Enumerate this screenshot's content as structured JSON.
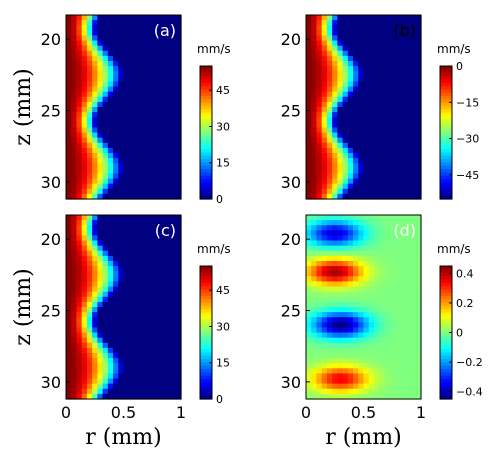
{
  "chart_data": [
    {
      "type": "heatmap",
      "panel_label": "(a)",
      "ylabel": "z (mm)",
      "xlabel": "",
      "x_ticks": [],
      "y_ticks": [
        "20",
        "25",
        "30"
      ],
      "xlim": [
        0,
        1
      ],
      "ylim": [
        18.3,
        31.2
      ],
      "colorbar": {
        "unit": "mm/s",
        "min": 0,
        "max": 55,
        "ticks": [
          "45",
          "30",
          "15",
          "0"
        ],
        "tick_values": [
          45,
          30,
          15,
          0
        ]
      },
      "field": {
        "kind": "velocity",
        "vmax": 55,
        "vmin": 0
      }
    },
    {
      "type": "heatmap",
      "panel_label": "(b)",
      "ylabel": "",
      "xlabel": "",
      "x_ticks": [],
      "y_ticks": [
        "20",
        "25",
        "30"
      ],
      "xlim": [
        0,
        1
      ],
      "ylim": [
        18.3,
        31.2
      ],
      "colorbar": {
        "unit": "mm/s",
        "min": -55,
        "max": 0,
        "ticks": [
          "0",
          "−15",
          "−30",
          "−45"
        ],
        "tick_values": [
          0,
          -15,
          -30,
          -45
        ]
      },
      "field": {
        "kind": "velocity_shifted",
        "vmax": 55,
        "vmin": 0
      }
    },
    {
      "type": "heatmap",
      "panel_label": "(c)",
      "ylabel": "z (mm)",
      "xlabel": "r (mm)",
      "x_ticks": [
        "0",
        "0.5",
        "1"
      ],
      "y_ticks": [
        "20",
        "25",
        "30"
      ],
      "xlim": [
        0,
        1
      ],
      "ylim": [
        18.3,
        31.2
      ],
      "colorbar": {
        "unit": "mm/s",
        "min": 0,
        "max": 55,
        "ticks": [
          "45",
          "30",
          "15",
          "0"
        ],
        "tick_values": [
          45,
          30,
          15,
          0
        ]
      },
      "field": {
        "kind": "velocity",
        "vmax": 55,
        "vmin": 0
      }
    },
    {
      "type": "heatmap",
      "panel_label": "(d)",
      "ylabel": "",
      "xlabel": "r (mm)",
      "x_ticks": [
        "0",
        "0.5",
        "1"
      ],
      "y_ticks": [
        "20",
        "25",
        "30"
      ],
      "xlim": [
        0,
        1
      ],
      "ylim": [
        18.3,
        31.2
      ],
      "colorbar": {
        "unit": "mm/s",
        "min": -0.45,
        "max": 0.45,
        "ticks": [
          "0.4",
          "0.2",
          "0",
          "−0.2",
          "−0.4"
        ],
        "tick_values": [
          0.4,
          0.2,
          0,
          -0.2,
          -0.4
        ]
      },
      "field": {
        "kind": "difference",
        "blobs": [
          {
            "r": 0.25,
            "z": 19.6,
            "amp": -0.38
          },
          {
            "r": 0.25,
            "z": 22.3,
            "amp": 0.42
          },
          {
            "r": 0.3,
            "z": 26.0,
            "amp": -0.45
          },
          {
            "r": 0.3,
            "z": 29.8,
            "amp": 0.35
          }
        ]
      }
    }
  ]
}
